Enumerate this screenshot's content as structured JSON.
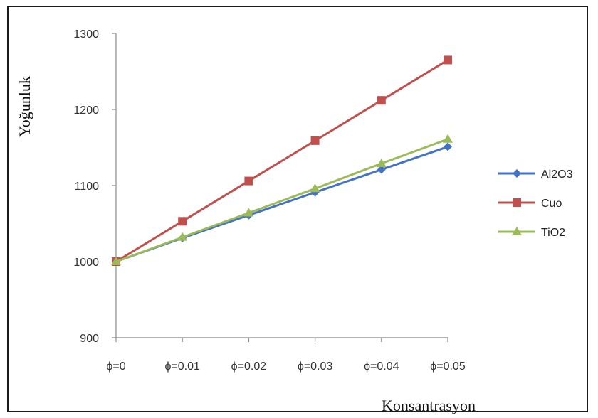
{
  "chart_data": {
    "type": "line",
    "title": "",
    "xlabel": "Konsantrasyon",
    "ylabel": "Yoğunluk",
    "categories": [
      "ϕ=0",
      "ϕ=0.01",
      "ϕ=0.02",
      "ϕ=0.03",
      "ϕ=0.04",
      "ϕ=0.05"
    ],
    "ylim": [
      900,
      1300
    ],
    "yticks": [
      900,
      1000,
      1100,
      1200,
      1300
    ],
    "grid": false,
    "legend_position": "right",
    "series": [
      {
        "name": "Al2O3",
        "color": "#4472C4",
        "marker": "diamond",
        "values": [
          1000,
          1031,
          1061,
          1091,
          1121,
          1151
        ]
      },
      {
        "name": "Cuo",
        "color": "#C0504D",
        "marker": "square",
        "values": [
          1000,
          1053,
          1106,
          1159,
          1212,
          1265
        ]
      },
      {
        "name": "TiO2",
        "color": "#9BBB59",
        "marker": "triangle",
        "values": [
          1000,
          1032,
          1064,
          1096,
          1129,
          1161
        ]
      }
    ]
  }
}
